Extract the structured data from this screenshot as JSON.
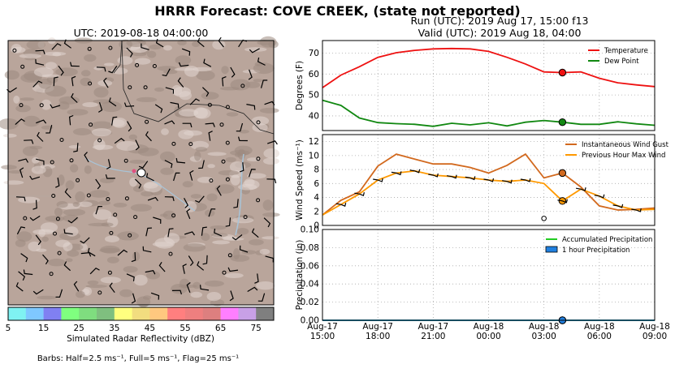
{
  "header": {
    "title": "HRRR Forecast: COVE CREEK, (state not reported)",
    "run": "Run (UTC): 2019 Aug 17, 15:00 f13",
    "valid": "Valid (UTC): 2019 Aug 18, 04:00"
  },
  "map": {
    "title": "UTC: 2019-08-18 04:00:00",
    "colorbar": {
      "label": "Simulated Radar Reflectivity (dBZ)",
      "ticks": [
        "5",
        "15",
        "25",
        "35",
        "45",
        "55",
        "65",
        "75"
      ],
      "colors": [
        "#7ff2f2",
        "#7fc8ff",
        "#8080f2",
        "#7fff7f",
        "#7fdd7f",
        "#7fbf7f",
        "#ffff7f",
        "#f2dd7f",
        "#ffc87f",
        "#ff7f7f",
        "#ee7f7f",
        "#dd7f7f",
        "#ff7fff",
        "#c8a0e6",
        "#7f7f7f"
      ]
    },
    "barb_note": "Barbs: Half=2.5 ms⁻¹, Full=5 ms⁻¹, Flag=25 ms⁻¹",
    "terrain_color": "#b9a59b"
  },
  "chart_data": [
    {
      "type": "line",
      "ylabel": "Degrees (F)",
      "ylim": [
        33,
        76
      ],
      "yticks": [
        40,
        50,
        60,
        70
      ],
      "grid": true,
      "legend": "top-right",
      "x_hours": [
        0,
        1,
        2,
        3,
        4,
        5,
        6,
        7,
        8,
        9,
        10,
        11,
        12,
        13,
        14,
        15,
        16,
        17,
        18
      ],
      "series": [
        {
          "name": "Temperature",
          "color": "#ee1111",
          "values": [
            53.5,
            59.5,
            63.5,
            68,
            70.2,
            71.3,
            72,
            72.2,
            72,
            70.8,
            68,
            64.8,
            61,
            60.7,
            61,
            58,
            55.8,
            54.8,
            54
          ]
        },
        {
          "name": "Dew Point",
          "color": "#118811",
          "values": [
            47.5,
            45,
            39,
            36.8,
            36.3,
            36,
            35,
            36.5,
            35.7,
            36.7,
            35.2,
            37,
            37.8,
            37,
            36,
            36,
            37.2,
            36.2,
            35.5
          ]
        }
      ],
      "marker_hour": 13
    },
    {
      "type": "line",
      "ylabel": "Wind Speed (ms⁻¹)",
      "ylim": [
        0,
        13
      ],
      "yticks": [
        0,
        2,
        4,
        6,
        8,
        10,
        12
      ],
      "grid": true,
      "legend": "top-right",
      "x_hours": [
        0,
        1,
        2,
        3,
        4,
        5,
        6,
        7,
        8,
        9,
        10,
        11,
        12,
        13,
        14,
        15,
        16,
        17,
        18
      ],
      "series": [
        {
          "name": "Instantaneous Wind Gust",
          "color": "#d2691e",
          "values": [
            1.5,
            3.6,
            4.8,
            8.5,
            10.2,
            9.5,
            8.8,
            8.8,
            8.3,
            7.5,
            8.6,
            10.2,
            6.8,
            7.5,
            5.5,
            2.8,
            2.2,
            2.3,
            2.5
          ]
        },
        {
          "name": "Previous Hour Max Wind",
          "color": "#ff9900",
          "values": [
            1.5,
            3,
            4.5,
            6.5,
            7.5,
            7.8,
            7.2,
            7,
            6.8,
            6.5,
            6.3,
            6.5,
            6,
            3.5,
            5.2,
            4.2,
            2.8,
            2.2,
            2.3
          ]
        }
      ],
      "marker_hour": 13
    },
    {
      "type": "line",
      "ylabel": "Precipitation (in)",
      "ylim": [
        0,
        0.1
      ],
      "yticks": [
        "0.00",
        "0.02",
        "0.04",
        "0.06",
        "0.08",
        "0.10"
      ],
      "grid": true,
      "legend": "top-right",
      "series": [
        {
          "name": "Accumulated Precipitation",
          "color": "#22cc22",
          "values": [
            0,
            0,
            0,
            0,
            0,
            0,
            0,
            0,
            0,
            0,
            0,
            0,
            0,
            0,
            0,
            0,
            0,
            0,
            0
          ]
        },
        {
          "name": "1 hour Precipitation",
          "color": "#2080e0",
          "values": [
            0,
            0,
            0,
            0,
            0,
            0,
            0,
            0,
            0,
            0,
            0,
            0,
            0,
            0,
            0,
            0,
            0,
            0,
            0
          ]
        }
      ],
      "marker_hour": 13
    }
  ],
  "xaxis": {
    "ticks": [
      {
        "hour": 0,
        "line1": "Aug-17",
        "line2": "15:00"
      },
      {
        "hour": 3,
        "line1": "Aug-17",
        "line2": "18:00"
      },
      {
        "hour": 6,
        "line1": "Aug-17",
        "line2": "21:00"
      },
      {
        "hour": 9,
        "line1": "Aug-18",
        "line2": "00:00"
      },
      {
        "hour": 12,
        "line1": "Aug-18",
        "line2": "03:00"
      },
      {
        "hour": 15,
        "line1": "Aug-18",
        "line2": "06:00"
      },
      {
        "hour": 18,
        "line1": "Aug-18",
        "line2": "09:00"
      }
    ]
  }
}
